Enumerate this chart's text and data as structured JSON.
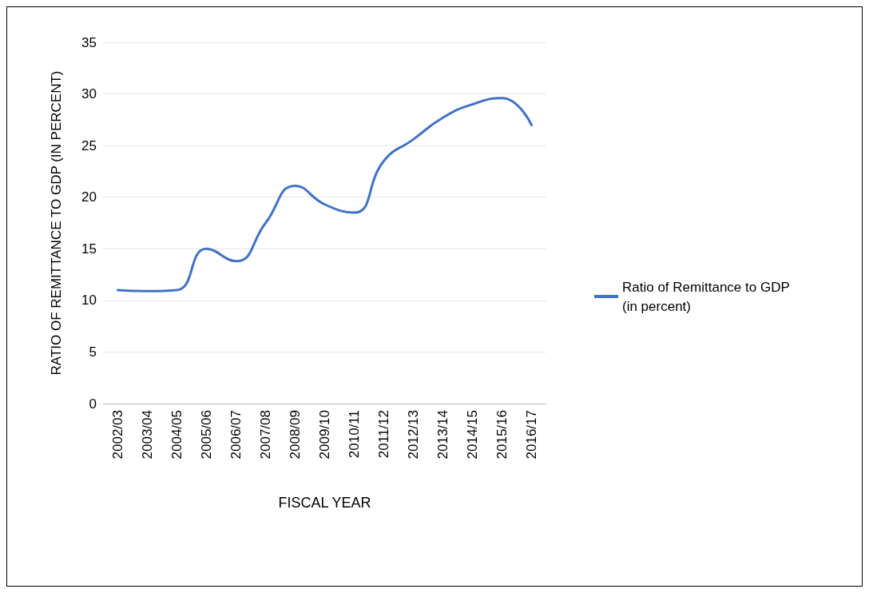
{
  "chart_data": {
    "type": "line",
    "xlabel": "FISCAL YEAR",
    "ylabel": "RATIO OF REMITTANCE TO GDP (IN PERCENT)",
    "categories": [
      "2002/03",
      "2003/04",
      "2004/05",
      "2005/06",
      "2006/07",
      "2007/08",
      "2008/09",
      "2009/10",
      "2010/11",
      "2011/12",
      "2012/13",
      "2013/14",
      "2014/15",
      "2015/16",
      "2016/17"
    ],
    "series": [
      {
        "name": "Ratio of Remittance to GDP\n(in percent)",
        "color": "#4472c4",
        "values": [
          11.0,
          10.9,
          11.0,
          15.0,
          13.8,
          17.5,
          21.1,
          19.3,
          18.5,
          23.5,
          25.6,
          27.7,
          29.0,
          29.6,
          27.0
        ]
      }
    ],
    "ylim": [
      0,
      35
    ],
    "yticks": [
      0,
      5,
      10,
      15,
      20,
      25,
      30,
      35
    ],
    "grid": "y",
    "legend": "right",
    "marker": "none",
    "line_style": "solid"
  }
}
